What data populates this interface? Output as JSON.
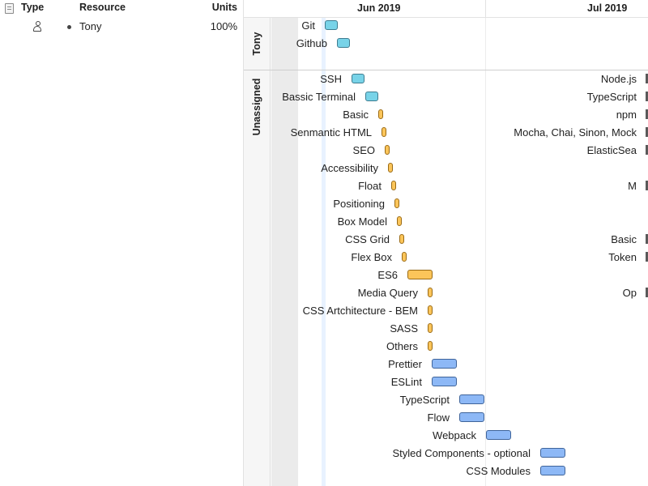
{
  "resource_table": {
    "columns": {
      "type": "Type",
      "resource": "Resource",
      "units": "Units"
    },
    "rows": [
      {
        "name": "Tony",
        "units": "100%"
      }
    ]
  },
  "timescale": {
    "months": [
      "Jun 2019",
      "Jul 2019"
    ]
  },
  "groups": [
    {
      "label": "Tony"
    },
    {
      "label": "Unassigned"
    }
  ],
  "tasks": [
    {
      "name": "Git",
      "color": "cyan"
    },
    {
      "name": "Github",
      "color": "cyan"
    },
    {
      "name": "SSH",
      "color": "cyan"
    },
    {
      "name": "Bassic Terminal",
      "color": "cyan"
    },
    {
      "name": "Basic",
      "color": "orange"
    },
    {
      "name": "Senmantic HTML",
      "color": "orange"
    },
    {
      "name": "SEO",
      "color": "orange"
    },
    {
      "name": "Accessibility",
      "color": "orange"
    },
    {
      "name": "Float",
      "color": "orange"
    },
    {
      "name": "Positioning",
      "color": "orange"
    },
    {
      "name": "Box Model",
      "color": "orange"
    },
    {
      "name": "CSS Grid",
      "color": "orange"
    },
    {
      "name": "Flex Box",
      "color": "orange"
    },
    {
      "name": "ES6",
      "color": "orange"
    },
    {
      "name": "Media Query",
      "color": "orange"
    },
    {
      "name": "CSS Artchitecture - BEM",
      "color": "orange"
    },
    {
      "name": "SASS",
      "color": "orange"
    },
    {
      "name": "Others",
      "color": "orange"
    },
    {
      "name": "Prettier",
      "color": "blue"
    },
    {
      "name": "ESLint",
      "color": "blue"
    },
    {
      "name": "TypeScript",
      "color": "blue"
    },
    {
      "name": "Flow",
      "color": "blue"
    },
    {
      "name": "Webpack",
      "color": "blue"
    },
    {
      "name": "Styled Components - optional",
      "color": "blue"
    },
    {
      "name": "CSS Modules",
      "color": "blue"
    }
  ],
  "right_edge_tasks": [
    {
      "name": "Node.js"
    },
    {
      "name": "TypeScript"
    },
    {
      "name": "npm"
    },
    {
      "name": "Mocha, Chai, Sinon, Mock"
    },
    {
      "name": "ElasticSea"
    },
    {
      "name": "M"
    },
    {
      "name": "Basic"
    },
    {
      "name": "Token"
    },
    {
      "name": "Op"
    }
  ],
  "colors": {
    "cyan": "#78d3e8",
    "orange": "#fbc55a",
    "blue": "#8db8f6"
  }
}
